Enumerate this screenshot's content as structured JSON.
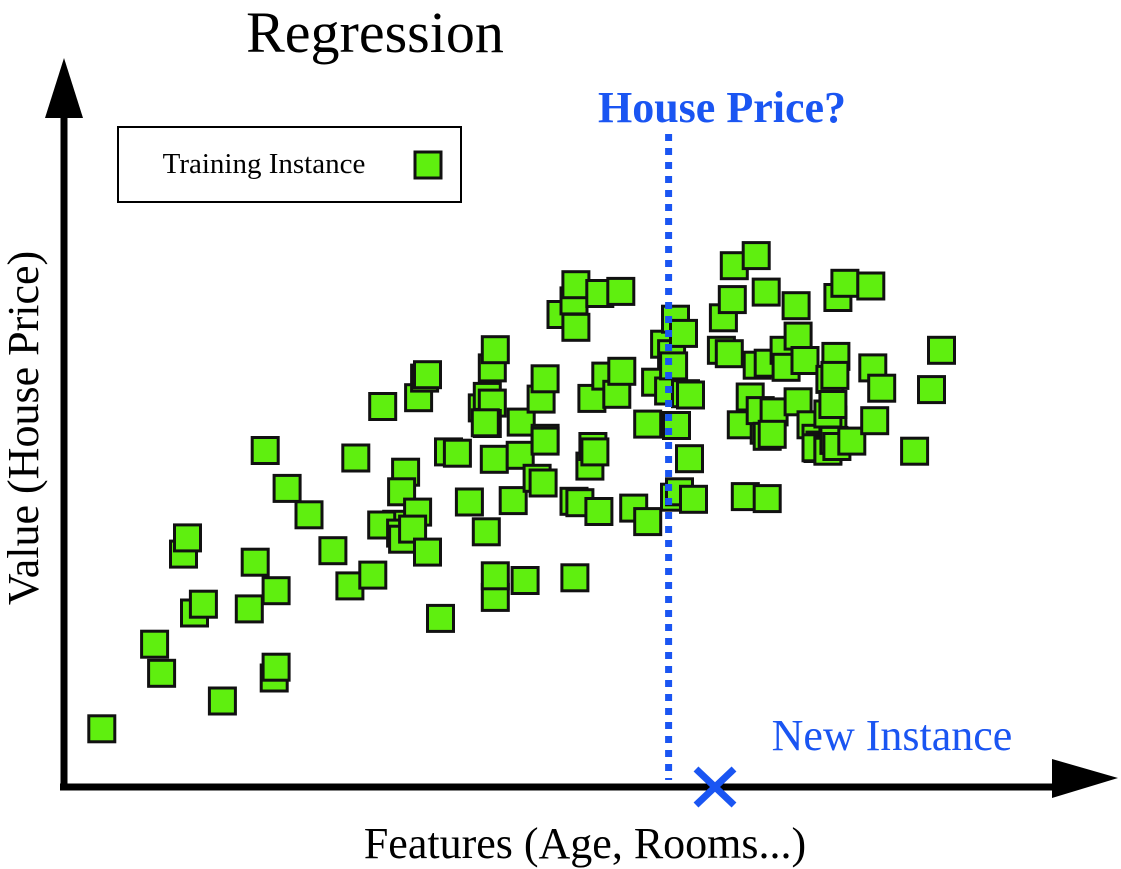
{
  "chart_data": {
    "type": "scatter",
    "title": "Regression",
    "xlabel": "Features (Age, Rooms...)",
    "ylabel": "Value (House Price)",
    "xlim": [
      0,
      100
    ],
    "ylim": [
      0,
      100
    ],
    "grid": false,
    "legend": {
      "position": "top-left",
      "label": "Training Instance"
    },
    "colors": {
      "point_fill": "#5fef0f",
      "point_stroke": "#111111",
      "query": "#1a55f2",
      "axis": "#000000"
    },
    "series": [
      {
        "name": "Training Instance",
        "points": [
          [
            3.8,
            8.6
          ],
          [
            9.1,
            21.1
          ],
          [
            9.8,
            16.8
          ],
          [
            12.0,
            34.4
          ],
          [
            12.4,
            36.8
          ],
          [
            13.1,
            25.7
          ],
          [
            14.0,
            27.0
          ],
          [
            15.9,
            12.7
          ],
          [
            18.6,
            26.3
          ],
          [
            19.2,
            33.2
          ],
          [
            21.1,
            16.1
          ],
          [
            21.3,
            17.7
          ],
          [
            21.3,
            29.0
          ],
          [
            20.2,
            49.7
          ],
          [
            22.4,
            44.1
          ],
          [
            24.6,
            40.2
          ],
          [
            27.0,
            34.9
          ],
          [
            28.7,
            29.7
          ],
          [
            29.3,
            48.6
          ],
          [
            31.0,
            31.3
          ],
          [
            32.0,
            56.2
          ],
          [
            33.4,
            38.8
          ],
          [
            31.9,
            38.7
          ],
          [
            34.3,
            46.5
          ],
          [
            33.9,
            43.6
          ],
          [
            33.8,
            37.5
          ],
          [
            34.0,
            36.6
          ],
          [
            35.5,
            40.6
          ],
          [
            35.0,
            38.1
          ],
          [
            36.5,
            34.7
          ],
          [
            35.6,
            57.5
          ],
          [
            36.2,
            60.4
          ],
          [
            36.5,
            60.9
          ],
          [
            37.8,
            24.9
          ],
          [
            38.6,
            49.5
          ],
          [
            39.5,
            49.3
          ],
          [
            40.7,
            42.1
          ],
          [
            42.4,
            37.7
          ],
          [
            42.0,
            56.0
          ],
          [
            42.5,
            57.7
          ],
          [
            43.0,
            56.7
          ],
          [
            42.5,
            53.7
          ],
          [
            43.0,
            61.9
          ],
          [
            43.3,
            64.6
          ],
          [
            43.2,
            48.4
          ],
          [
            42.3,
            53.8
          ],
          [
            43.3,
            28.0
          ],
          [
            43.3,
            31.2
          ],
          [
            45.1,
            42.3
          ],
          [
            45.8,
            49.0
          ],
          [
            45.9,
            53.9
          ],
          [
            46.3,
            30.5
          ],
          [
            47.5,
            45.6
          ],
          [
            48.1,
            44.9
          ],
          [
            48.3,
            51.5
          ],
          [
            48.3,
            51.1
          ],
          [
            47.9,
            57.3
          ],
          [
            48.3,
            60.3
          ],
          [
            49.9,
            69.8
          ],
          [
            51.2,
            71.8
          ],
          [
            51.4,
            67.9
          ],
          [
            51.4,
            74.2
          ],
          [
            51.3,
            30.9
          ],
          [
            51.2,
            42.2
          ],
          [
            51.8,
            42.0
          ],
          [
            52.8,
            47.4
          ],
          [
            53.0,
            57.4
          ],
          [
            53.1,
            50.3
          ],
          [
            53.3,
            49.5
          ],
          [
            53.7,
            40.7
          ],
          [
            53.8,
            72.9
          ],
          [
            54.4,
            60.7
          ],
          [
            55.5,
            58.0
          ],
          [
            55.9,
            73.2
          ],
          [
            56.0,
            61.4
          ],
          [
            57.2,
            41.2
          ],
          [
            58.6,
            53.6
          ],
          [
            58.6,
            39.2
          ],
          [
            59.4,
            59.8
          ],
          [
            60.7,
            58.5
          ],
          [
            60.3,
            65.4
          ],
          [
            61.0,
            64.0
          ],
          [
            61.4,
            69.1
          ],
          [
            61.2,
            62.2
          ],
          [
            61.3,
            42.8
          ],
          [
            61.5,
            53.4
          ],
          [
            61.8,
            43.6
          ],
          [
            62.4,
            58.1
          ],
          [
            62.2,
            67.0
          ],
          [
            62.9,
            57.9
          ],
          [
            62.8,
            48.5
          ],
          [
            63.2,
            42.5
          ],
          [
            66.0,
            64.5
          ],
          [
            66.2,
            69.3
          ],
          [
            67.1,
            72.0
          ],
          [
            67.3,
            77.0
          ],
          [
            66.8,
            64.0
          ],
          [
            68.0,
            53.5
          ],
          [
            68.9,
            57.6
          ],
          [
            68.4,
            42.9
          ],
          [
            70.3,
            52.7
          ],
          [
            69.6,
            62.3
          ],
          [
            70.7,
            62.6
          ],
          [
            69.9,
            55.6
          ],
          [
            70.5,
            73.1
          ],
          [
            69.5,
            78.5
          ],
          [
            70.6,
            51.8
          ],
          [
            71.3,
            55.4
          ],
          [
            71.1,
            52.1
          ],
          [
            70.6,
            42.6
          ],
          [
            72.3,
            64.5
          ],
          [
            72.5,
            62.0
          ],
          [
            73.7,
            56.9
          ],
          [
            73.5,
            71.1
          ],
          [
            73.7,
            66.6
          ],
          [
            74.4,
            63.0
          ],
          [
            75.0,
            53.5
          ],
          [
            75.5,
            51.5
          ],
          [
            75.7,
            50.0
          ],
          [
            75.9,
            50.5
          ],
          [
            75.5,
            50.1
          ],
          [
            76.7,
            49.8
          ],
          [
            76.9,
            60.2
          ],
          [
            77.2,
            54.2
          ],
          [
            76.7,
            49.6
          ],
          [
            76.7,
            55.1
          ],
          [
            77.2,
            56.5
          ],
          [
            77.3,
            51.2
          ],
          [
            77.6,
            50.3
          ],
          [
            77.5,
            63.6
          ],
          [
            77.7,
            72.3
          ],
          [
            77.4,
            60.8
          ],
          [
            78.4,
            74.4
          ],
          [
            79.1,
            51.1
          ],
          [
            81.0,
            74.0
          ],
          [
            81.4,
            54.1
          ],
          [
            81.2,
            61.9
          ],
          [
            82.1,
            58.9
          ],
          [
            85.4,
            49.6
          ],
          [
            88.1,
            64.5
          ],
          [
            87.1,
            58.7
          ]
        ]
      }
    ],
    "new_instance": {
      "label": "New Instance",
      "x": 60.7,
      "question": "House Price?"
    }
  }
}
